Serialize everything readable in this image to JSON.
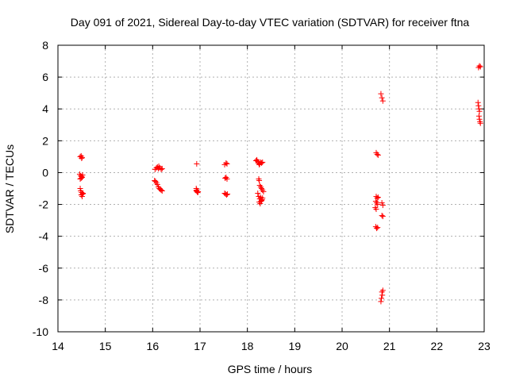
{
  "chart_data": {
    "type": "scatter",
    "title": "Day 091 of 2021, Sidereal Day-to-day VTEC variation (SDTVAR) for receiver ftna",
    "xlabel": "GPS time / hours",
    "ylabel": "SDTVAR / TECUs",
    "xlim": [
      14,
      23
    ],
    "ylim": [
      -10,
      8
    ],
    "grid": true,
    "marker": "plus",
    "color": "#ff0000",
    "x_ticks": [
      14,
      15,
      16,
      17,
      18,
      19,
      20,
      21,
      22,
      23
    ],
    "y_ticks": [
      -10,
      -8,
      -6,
      -4,
      -2,
      0,
      2,
      4,
      6,
      8
    ],
    "x_tick_labels": [
      "14",
      "15",
      "16",
      "17",
      "18",
      "19",
      "20",
      "21",
      "22",
      "23"
    ],
    "y_tick_labels": [
      "-10",
      "-8",
      "-6",
      "-4",
      "-2",
      "0",
      "2",
      "4",
      "6",
      "8"
    ],
    "series": [
      {
        "name": "SDTVAR",
        "points": [
          [
            14.47,
            1.0
          ],
          [
            14.49,
            1.05
          ],
          [
            14.51,
            0.95
          ],
          [
            14.5,
            0.9
          ],
          [
            14.46,
            -0.1
          ],
          [
            14.48,
            -0.2
          ],
          [
            14.5,
            -0.25
          ],
          [
            14.52,
            -0.15
          ],
          [
            14.47,
            -0.4
          ],
          [
            14.49,
            -0.35
          ],
          [
            14.51,
            -0.3
          ],
          [
            14.47,
            -1.0
          ],
          [
            14.48,
            -1.15
          ],
          [
            14.5,
            -1.25
          ],
          [
            14.52,
            -1.35
          ],
          [
            14.49,
            -1.4
          ],
          [
            14.51,
            -1.5
          ],
          [
            14.53,
            -1.3
          ],
          [
            16.05,
            0.2
          ],
          [
            16.08,
            0.3
          ],
          [
            16.1,
            0.35
          ],
          [
            16.12,
            0.25
          ],
          [
            16.15,
            0.3
          ],
          [
            16.18,
            0.2
          ],
          [
            16.2,
            0.25
          ],
          [
            16.13,
            0.4
          ],
          [
            16.04,
            -0.5
          ],
          [
            16.06,
            -0.55
          ],
          [
            16.08,
            -0.65
          ],
          [
            16.1,
            -0.75
          ],
          [
            16.12,
            -0.9
          ],
          [
            16.14,
            -1.0
          ],
          [
            16.16,
            -1.05
          ],
          [
            16.18,
            -1.1
          ],
          [
            16.2,
            -1.15
          ],
          [
            16.93,
            0.55
          ],
          [
            16.92,
            -1.0
          ],
          [
            16.93,
            -1.1
          ],
          [
            16.94,
            -1.2
          ],
          [
            16.95,
            -1.25
          ],
          [
            16.92,
            -1.15
          ],
          [
            16.96,
            -1.2
          ],
          [
            17.52,
            0.5
          ],
          [
            17.55,
            0.6
          ],
          [
            17.57,
            0.55
          ],
          [
            17.53,
            -0.35
          ],
          [
            17.55,
            -0.3
          ],
          [
            17.57,
            -0.4
          ],
          [
            17.52,
            -1.3
          ],
          [
            17.54,
            -1.35
          ],
          [
            17.56,
            -1.4
          ],
          [
            17.58,
            -1.35
          ],
          [
            18.18,
            0.75
          ],
          [
            18.2,
            0.8
          ],
          [
            18.22,
            0.7
          ],
          [
            18.24,
            0.6
          ],
          [
            18.26,
            0.55
          ],
          [
            18.28,
            0.65
          ],
          [
            18.3,
            0.6
          ],
          [
            18.32,
            0.65
          ],
          [
            18.25,
            0.5
          ],
          [
            18.24,
            -0.4
          ],
          [
            18.25,
            -0.5
          ],
          [
            18.26,
            -0.8
          ],
          [
            18.28,
            -0.9
          ],
          [
            18.3,
            -1.0
          ],
          [
            18.32,
            -1.1
          ],
          [
            18.34,
            -1.2
          ],
          [
            18.22,
            -1.3
          ],
          [
            18.24,
            -1.5
          ],
          [
            18.26,
            -1.65
          ],
          [
            18.28,
            -1.55
          ],
          [
            18.3,
            -1.75
          ],
          [
            18.32,
            -1.6
          ],
          [
            18.25,
            -1.85
          ],
          [
            18.27,
            -1.95
          ],
          [
            18.29,
            -1.8
          ],
          [
            18.31,
            -1.7
          ],
          [
            20.72,
            1.25
          ],
          [
            20.74,
            1.15
          ],
          [
            20.76,
            1.1
          ],
          [
            20.72,
            -1.5
          ],
          [
            20.74,
            -1.6
          ],
          [
            20.76,
            -1.55
          ],
          [
            20.71,
            -1.8
          ],
          [
            20.73,
            -1.9
          ],
          [
            20.75,
            -2.0
          ],
          [
            20.7,
            -2.2
          ],
          [
            20.72,
            -2.3
          ],
          [
            20.84,
            -1.9
          ],
          [
            20.86,
            -2.05
          ],
          [
            20.84,
            -2.7
          ],
          [
            20.86,
            -2.75
          ],
          [
            20.71,
            -3.4
          ],
          [
            20.73,
            -3.5
          ],
          [
            20.75,
            -3.45
          ],
          [
            20.82,
            4.95
          ],
          [
            20.84,
            4.7
          ],
          [
            20.86,
            4.5
          ],
          [
            20.84,
            -7.5
          ],
          [
            20.85,
            -7.7
          ],
          [
            20.83,
            -7.9
          ],
          [
            20.82,
            -8.1
          ],
          [
            20.86,
            -7.4
          ],
          [
            22.88,
            6.6
          ],
          [
            22.9,
            6.7
          ],
          [
            22.92,
            6.65
          ],
          [
            22.87,
            4.4
          ],
          [
            22.88,
            4.2
          ],
          [
            22.89,
            4.0
          ],
          [
            22.9,
            3.85
          ],
          [
            22.89,
            3.55
          ],
          [
            22.9,
            3.35
          ],
          [
            22.91,
            3.2
          ],
          [
            22.92,
            3.1
          ]
        ]
      }
    ]
  }
}
